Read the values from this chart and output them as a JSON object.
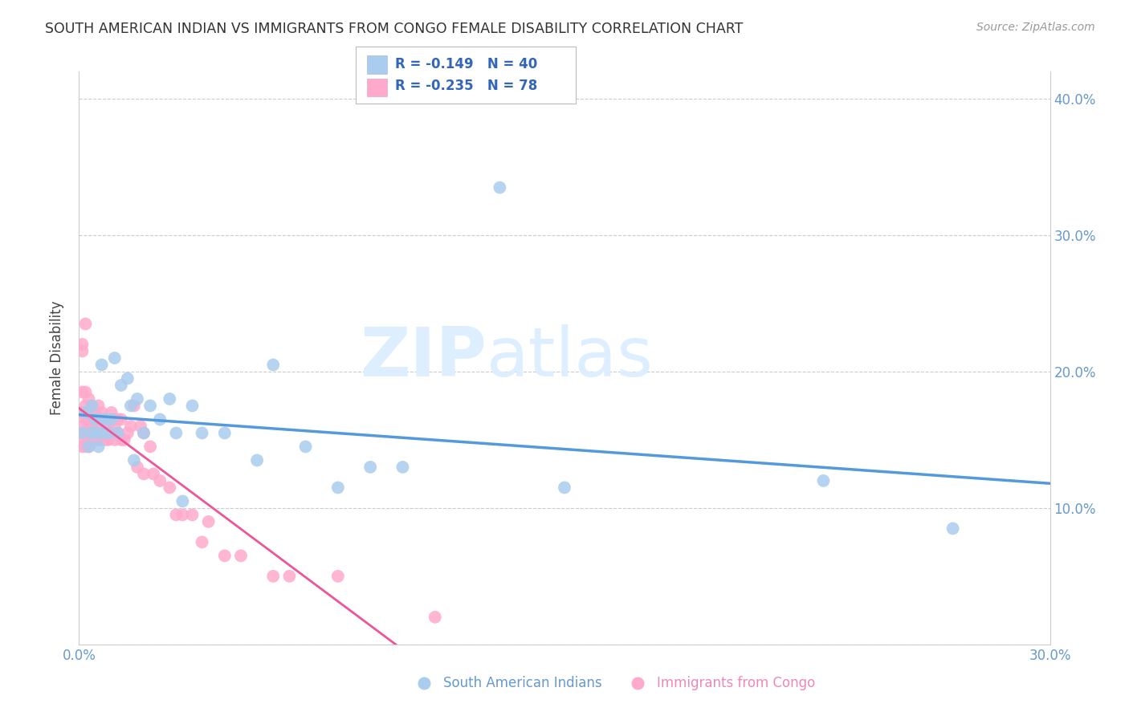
{
  "title": "SOUTH AMERICAN INDIAN VS IMMIGRANTS FROM CONGO FEMALE DISABILITY CORRELATION CHART",
  "source": "Source: ZipAtlas.com",
  "ylabel": "Female Disability",
  "xlim": [
    0.0,
    0.3
  ],
  "ylim": [
    0.0,
    0.42
  ],
  "xticks": [
    0.0,
    0.05,
    0.1,
    0.15,
    0.2,
    0.25,
    0.3
  ],
  "yticks": [
    0.0,
    0.1,
    0.2,
    0.3,
    0.4
  ],
  "grid_color": "#cccccc",
  "background_color": "#ffffff",
  "series1_label": "South American Indians",
  "series1_color": "#aaccee",
  "series1_line_color": "#5599dd",
  "series1_R": -0.149,
  "series1_N": 40,
  "series2_label": "Immigrants from Congo",
  "series2_color": "#ffaacc",
  "series2_line_color": "#ee5599",
  "series2_R": -0.235,
  "series2_N": 78,
  "series1_x": [
    0.001,
    0.002,
    0.003,
    0.004,
    0.004,
    0.005,
    0.005,
    0.006,
    0.006,
    0.007,
    0.007,
    0.008,
    0.009,
    0.01,
    0.011,
    0.012,
    0.013,
    0.015,
    0.016,
    0.017,
    0.018,
    0.02,
    0.022,
    0.025,
    0.028,
    0.03,
    0.032,
    0.035,
    0.038,
    0.045,
    0.055,
    0.06,
    0.07,
    0.08,
    0.09,
    0.1,
    0.13,
    0.15,
    0.23,
    0.27
  ],
  "series1_y": [
    0.155,
    0.17,
    0.145,
    0.175,
    0.155,
    0.155,
    0.165,
    0.165,
    0.145,
    0.155,
    0.205,
    0.165,
    0.155,
    0.165,
    0.21,
    0.155,
    0.19,
    0.195,
    0.175,
    0.135,
    0.18,
    0.155,
    0.175,
    0.165,
    0.18,
    0.155,
    0.105,
    0.175,
    0.155,
    0.155,
    0.135,
    0.205,
    0.145,
    0.115,
    0.13,
    0.13,
    0.335,
    0.115,
    0.12,
    0.085
  ],
  "series2_x": [
    0.001,
    0.001,
    0.001,
    0.001,
    0.001,
    0.001,
    0.001,
    0.002,
    0.002,
    0.002,
    0.002,
    0.002,
    0.002,
    0.002,
    0.003,
    0.003,
    0.003,
    0.003,
    0.003,
    0.003,
    0.003,
    0.003,
    0.004,
    0.004,
    0.004,
    0.004,
    0.005,
    0.005,
    0.005,
    0.005,
    0.005,
    0.006,
    0.006,
    0.006,
    0.006,
    0.007,
    0.007,
    0.007,
    0.007,
    0.008,
    0.008,
    0.008,
    0.009,
    0.009,
    0.009,
    0.01,
    0.01,
    0.01,
    0.011,
    0.011,
    0.011,
    0.012,
    0.012,
    0.013,
    0.013,
    0.014,
    0.015,
    0.016,
    0.017,
    0.018,
    0.019,
    0.02,
    0.02,
    0.022,
    0.023,
    0.025,
    0.028,
    0.03,
    0.032,
    0.035,
    0.038,
    0.04,
    0.045,
    0.05,
    0.06,
    0.065,
    0.08,
    0.11
  ],
  "series2_y": [
    0.22,
    0.215,
    0.185,
    0.17,
    0.16,
    0.155,
    0.145,
    0.235,
    0.185,
    0.175,
    0.165,
    0.155,
    0.15,
    0.145,
    0.18,
    0.17,
    0.165,
    0.16,
    0.155,
    0.15,
    0.155,
    0.145,
    0.175,
    0.165,
    0.16,
    0.155,
    0.17,
    0.165,
    0.165,
    0.16,
    0.15,
    0.175,
    0.165,
    0.16,
    0.15,
    0.17,
    0.165,
    0.16,
    0.15,
    0.165,
    0.16,
    0.15,
    0.165,
    0.16,
    0.15,
    0.17,
    0.165,
    0.155,
    0.165,
    0.16,
    0.15,
    0.165,
    0.155,
    0.165,
    0.15,
    0.15,
    0.155,
    0.16,
    0.175,
    0.13,
    0.16,
    0.155,
    0.125,
    0.145,
    0.125,
    0.12,
    0.115,
    0.095,
    0.095,
    0.095,
    0.075,
    0.09,
    0.065,
    0.065,
    0.05,
    0.05,
    0.05,
    0.02
  ],
  "watermark_zip": "ZIP",
  "watermark_atlas": "atlas",
  "watermark_color": "#ddeeff",
  "legend_R1": "R = -0.149",
  "legend_N1": "N = 40",
  "legend_R2": "R = -0.235",
  "legend_N2": "N = 78"
}
